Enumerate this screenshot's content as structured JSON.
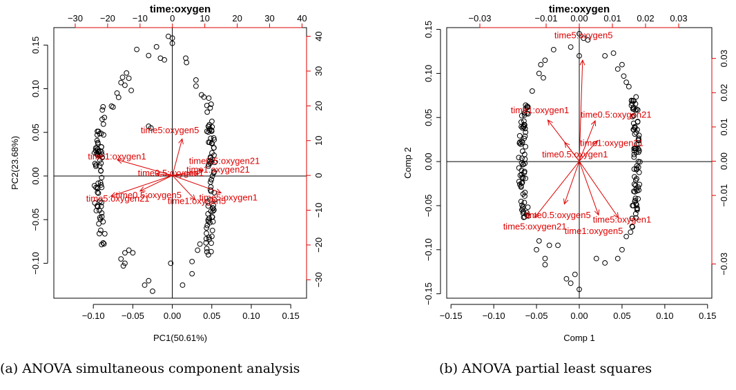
{
  "figure": {
    "captions": [
      "(a) ANOVA simultaneous component analysis",
      "(b) ANOVA partial least squares"
    ]
  },
  "colors": {
    "points": "#000000",
    "loadings": "#dd0000",
    "axes": "#000000"
  },
  "chart_data": [
    {
      "type": "scatter",
      "subtype": "biplot",
      "title": "time:oxygen",
      "xlabel": "PC1(50.61%)",
      "ylabel": "PC2(23.68%)",
      "xlim": [
        -0.15,
        0.17
      ],
      "ylim": [
        -0.14,
        0.17
      ],
      "xticks": [
        -0.1,
        -0.05,
        0.0,
        0.05,
        0.1,
        0.15
      ],
      "yticks": [
        -0.1,
        -0.05,
        0.0,
        0.05,
        0.1,
        0.15
      ],
      "xtick_labels": [
        "−0.10",
        "−0.05",
        "0.00",
        "0.05",
        "0.10",
        "0.15"
      ],
      "ytick_labels": [
        "−0.10",
        "−0.05",
        "0.00",
        "0.05",
        "0.10",
        "0.15"
      ],
      "top_axis": {
        "lim": [
          -36.6,
          41.4
        ],
        "ticks": [
          -30,
          -20,
          -10,
          0,
          10,
          20,
          30,
          40
        ],
        "labels": [
          "−30",
          "−20",
          "−10",
          "0",
          "10",
          "20",
          "30",
          "40"
        ]
      },
      "right_axis": {
        "lim": [
          -35.3,
          42.5
        ],
        "ticks": [
          -30,
          -20,
          -10,
          0,
          10,
          20,
          30,
          40
        ],
        "labels": [
          "−30",
          "−20",
          "−10",
          "0",
          "10",
          "20",
          "30",
          "40"
        ]
      },
      "scores_extra": [
        [
          -0.005,
          0.16
        ],
        [
          0.0,
          0.158
        ],
        [
          -0.02,
          0.148
        ],
        [
          -0.045,
          0.145
        ],
        [
          -0.015,
          0.135
        ],
        [
          -0.01,
          0.133
        ],
        [
          -0.03,
          0.138
        ],
        [
          0.0,
          0.152
        ],
        [
          -0.063,
          0.113
        ],
        [
          -0.058,
          0.118
        ],
        [
          -0.055,
          0.112
        ],
        [
          -0.06,
          0.104
        ],
        [
          -0.052,
          0.098
        ],
        [
          -0.07,
          0.095
        ],
        [
          -0.068,
          0.09
        ],
        [
          -0.065,
          0.107
        ],
        [
          -0.075,
          0.079
        ],
        [
          -0.077,
          0.08
        ],
        [
          0.017,
          0.135
        ],
        [
          0.018,
          0.13
        ],
        [
          0.03,
          0.11
        ],
        [
          0.03,
          0.103
        ],
        [
          0.037,
          0.093
        ],
        [
          -0.055,
          -0.085
        ],
        [
          -0.06,
          -0.088
        ],
        [
          -0.065,
          -0.095
        ],
        [
          -0.06,
          -0.1
        ],
        [
          -0.062,
          -0.103
        ],
        [
          -0.05,
          -0.088
        ],
        [
          0.025,
          -0.098
        ],
        [
          0.025,
          -0.112
        ],
        [
          0.013,
          -0.125
        ],
        [
          -0.002,
          -0.1
        ],
        [
          -0.035,
          -0.125
        ],
        [
          -0.03,
          -0.12
        ],
        [
          -0.025,
          -0.132
        ],
        [
          0.032,
          -0.085
        ],
        [
          0.035,
          -0.078
        ],
        [
          -0.03,
          0.057
        ],
        [
          -0.027,
          0.055
        ]
      ],
      "clusters": [
        {
          "cx": -0.089,
          "cy": 0.0,
          "rx": 0.01,
          "ry": 0.08,
          "n": 70
        },
        {
          "cx": 0.045,
          "cy": 0.0,
          "rx": 0.009,
          "ry": 0.095,
          "n": 80
        }
      ],
      "loadings": [
        {
          "label": "time5:oxygen5",
          "x": 3.0,
          "y": 10.5,
          "lx": -0.003,
          "ly": 0.052
        },
        {
          "label": "time1:oxygen1",
          "x": -17.0,
          "y": 4.5,
          "lx": -0.07,
          "ly": 0.022
        },
        {
          "label": "time0.5:oxygen21",
          "x": 9.5,
          "y": 1.5,
          "lx": 0.066,
          "ly": 0.017
        },
        {
          "label": "time1:oxygen21",
          "x": 8.0,
          "y": 0.5,
          "lx": 0.058,
          "ly": 0.007
        },
        {
          "label": "time0.5:oxygen1",
          "x": -5.0,
          "y": 0.5,
          "lx": -0.002,
          "ly": 0.003
        },
        {
          "label": "time5:oxygen1",
          "x": 15.0,
          "y": -5.0,
          "lx": 0.071,
          "ly": -0.025
        },
        {
          "label": "time5:oxygen21",
          "x": -19.0,
          "y": -6.0,
          "lx": -0.069,
          "ly": -0.026
        },
        {
          "label": "time0.5:oxygen5",
          "x": -10.0,
          "y": -4.5,
          "lx": -0.03,
          "ly": -0.022
        },
        {
          "label": "time1:oxygen5",
          "x": 7.0,
          "y": -7.0,
          "lx": 0.031,
          "ly": -0.029
        }
      ]
    },
    {
      "type": "scatter",
      "subtype": "biplot",
      "title": "time:oxygen",
      "xlabel": "Comp 1",
      "ylabel": "Comp 2",
      "xlim": [
        -0.155,
        0.155
      ],
      "ylim": [
        -0.155,
        0.152
      ],
      "xticks": [
        -0.15,
        -0.1,
        -0.05,
        0.0,
        0.05,
        0.1,
        0.15
      ],
      "yticks": [
        -0.15,
        -0.1,
        -0.05,
        0.0,
        0.05,
        0.1,
        0.15
      ],
      "xtick_labels": [
        "−0.15",
        "−0.10",
        "−0.05",
        "0.00",
        "0.05",
        "0.10",
        "0.15"
      ],
      "ytick_labels": [
        "−0.15",
        "−0.10",
        "−0.05",
        "0.00",
        "0.05",
        "0.10",
        "0.15"
      ],
      "top_axis": {
        "lim": [
          -0.04,
          0.04
        ],
        "ticks": [
          -0.03,
          -0.01,
          0.0,
          0.01,
          0.02,
          0.03
        ],
        "labels": [
          "−0.03",
          "−0.01",
          "0.00",
          "0.01",
          "0.02",
          "0.03"
        ]
      },
      "right_axis": {
        "lim": [
          -0.04,
          0.039
        ],
        "ticks": [
          -0.03,
          -0.01,
          0.0,
          0.01,
          0.02,
          0.03
        ],
        "labels": [
          "−0.03",
          "−0.01",
          "0.00",
          "0.01",
          "0.02",
          "0.03"
        ]
      },
      "scores_extra": [
        [
          0.0,
          0.145
        ],
        [
          0.005,
          0.14
        ],
        [
          -0.01,
          0.13
        ],
        [
          -0.03,
          0.127
        ],
        [
          0.0,
          0.12
        ],
        [
          0.01,
          0.138
        ],
        [
          0.04,
          0.123
        ],
        [
          0.05,
          0.11
        ],
        [
          0.052,
          0.097
        ],
        [
          0.055,
          0.09
        ],
        [
          -0.045,
          0.11
        ],
        [
          -0.04,
          0.115
        ],
        [
          -0.047,
          0.1
        ],
        [
          -0.042,
          0.095
        ],
        [
          -0.055,
          0.08
        ],
        [
          0.03,
          0.12
        ],
        [
          0.045,
          0.105
        ],
        [
          0.058,
          0.085
        ],
        [
          -0.047,
          -0.09
        ],
        [
          -0.035,
          -0.095
        ],
        [
          -0.04,
          -0.11
        ],
        [
          -0.04,
          -0.117
        ],
        [
          -0.05,
          -0.1
        ],
        [
          -0.025,
          -0.095
        ],
        [
          0.045,
          -0.11
        ],
        [
          0.05,
          -0.1
        ],
        [
          0.02,
          -0.11
        ],
        [
          0.03,
          -0.115
        ],
        [
          -0.01,
          -0.138
        ],
        [
          -0.015,
          -0.133
        ],
        [
          -0.005,
          -0.128
        ],
        [
          0.0,
          -0.145
        ],
        [
          0.055,
          -0.085
        ],
        [
          0.06,
          -0.08
        ]
      ],
      "clusters": [
        {
          "cx": -0.063,
          "cy": 0.0,
          "rx": 0.008,
          "ry": 0.065,
          "n": 70
        },
        {
          "cx": 0.064,
          "cy": 0.0,
          "rx": 0.007,
          "ry": 0.075,
          "n": 80
        }
      ],
      "loadings": [
        {
          "label": "time5:oxygen5",
          "x": 0.001,
          "y": 0.0295,
          "lx": 0.005,
          "ly": 0.143
        },
        {
          "label": "time1:oxygen1",
          "x": -0.0095,
          "y": 0.012,
          "lx": -0.046,
          "ly": 0.058
        },
        {
          "label": "time0.5:oxygen21",
          "x": 0.0048,
          "y": 0.0118,
          "lx": 0.043,
          "ly": 0.053
        },
        {
          "label": "time1:oxygen21",
          "x": 0.0055,
          "y": 0.006,
          "lx": 0.038,
          "ly": 0.021
        },
        {
          "label": "time0.5:oxygen1",
          "x": -0.0044,
          "y": 0.0055,
          "lx": -0.005,
          "ly": 0.008
        },
        {
          "label": "time5:oxygen1",
          "x": 0.0118,
          "y": -0.0165,
          "lx": 0.05,
          "ly": -0.066
        },
        {
          "label": "time5:oxygen21",
          "x": -0.0135,
          "y": -0.0165,
          "lx": -0.052,
          "ly": -0.074
        },
        {
          "label": "time0.5:oxygen5",
          "x": -0.0045,
          "y": -0.0125,
          "lx": -0.025,
          "ly": -0.061
        },
        {
          "label": "time1:oxygen5",
          "x": 0.0058,
          "y": -0.0157,
          "lx": 0.017,
          "ly": -0.079
        }
      ]
    }
  ]
}
